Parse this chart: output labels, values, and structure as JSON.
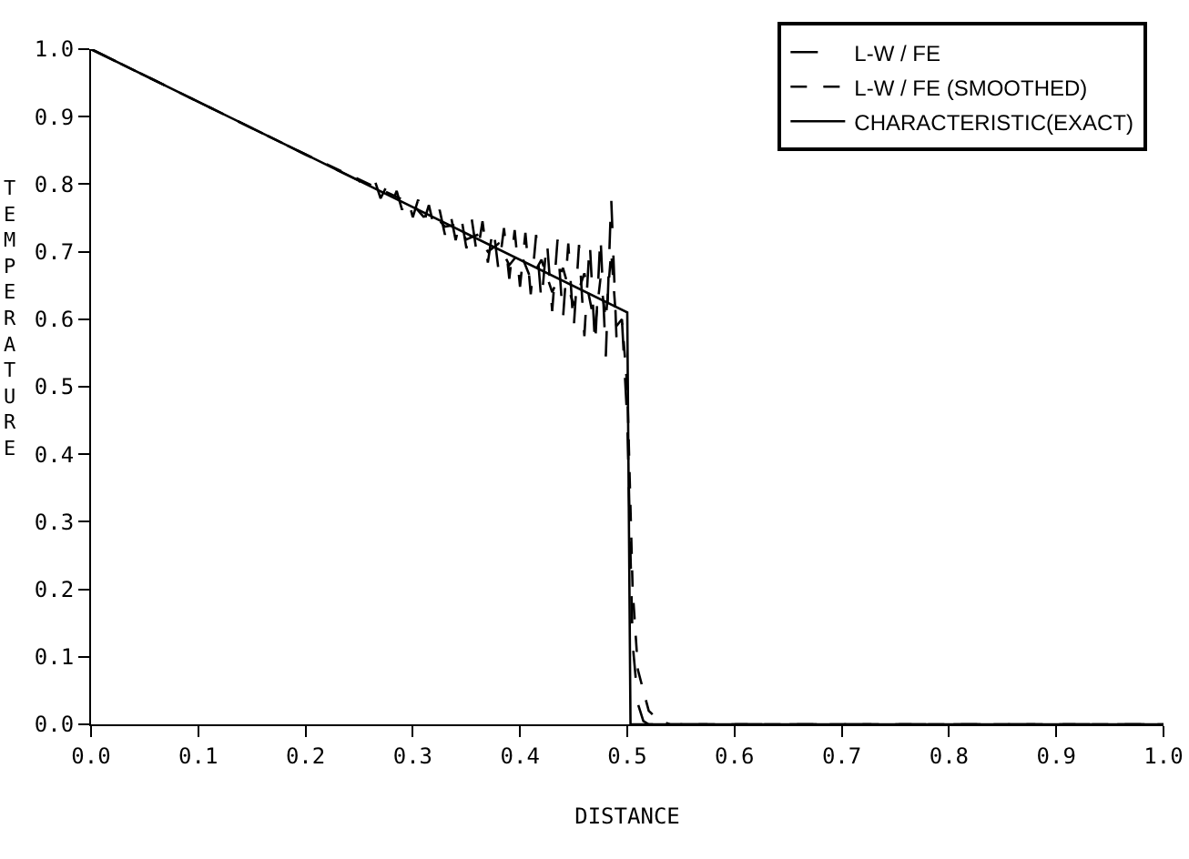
{
  "chart_data": {
    "type": "line",
    "xlabel": "DISTANCE",
    "ylabel": "TEMPERATURE",
    "xlim": [
      0,
      1
    ],
    "ylim": [
      0,
      1
    ],
    "xticks": [
      {
        "value": 0,
        "label": "0.0"
      },
      {
        "value": 0.1,
        "label": "0.1"
      },
      {
        "value": 0.2,
        "label": "0.2"
      },
      {
        "value": 0.3,
        "label": "0.3"
      },
      {
        "value": 0.4,
        "label": "0.4"
      },
      {
        "value": 0.5,
        "label": "0.5"
      },
      {
        "value": 0.6,
        "label": "0.6"
      },
      {
        "value": 0.7,
        "label": "0.7"
      },
      {
        "value": 0.8,
        "label": "0.8"
      },
      {
        "value": 0.9,
        "label": "0.9"
      },
      {
        "value": 1,
        "label": "1.0"
      }
    ],
    "yticks": [
      {
        "value": 0,
        "label": "0.0"
      },
      {
        "value": 0.1,
        "label": "0.1"
      },
      {
        "value": 0.2,
        "label": "0.2"
      },
      {
        "value": 0.3,
        "label": "0.3"
      },
      {
        "value": 0.4,
        "label": "0.4"
      },
      {
        "value": 0.5,
        "label": "0.5"
      },
      {
        "value": 0.6,
        "label": "0.6"
      },
      {
        "value": 0.7,
        "label": "0.7"
      },
      {
        "value": 0.8,
        "label": "0.8"
      },
      {
        "value": 0.9,
        "label": "0.9"
      },
      {
        "value": 1,
        "label": "1.0"
      }
    ],
    "grid": false,
    "legend": "top right",
    "marker": "none",
    "series": [
      {
        "name": "L-W / FE",
        "color": "#000000",
        "line_style": "dashed",
        "x": [
          0,
          0.05,
          0.1,
          0.15,
          0.2,
          0.25,
          0.26,
          0.265,
          0.27,
          0.275,
          0.28,
          0.285,
          0.29,
          0.295,
          0.3,
          0.305,
          0.31,
          0.315,
          0.32,
          0.325,
          0.33,
          0.335,
          0.34,
          0.345,
          0.35,
          0.355,
          0.36,
          0.365,
          0.37,
          0.375,
          0.38,
          0.385,
          0.39,
          0.395,
          0.4,
          0.405,
          0.41,
          0.415,
          0.42,
          0.425,
          0.43,
          0.435,
          0.44,
          0.445,
          0.45,
          0.455,
          0.46,
          0.465,
          0.47,
          0.475,
          0.48,
          0.485,
          0.49,
          0.495,
          0.5,
          0.505,
          0.51,
          0.515,
          0.52,
          1
        ],
        "values": [
          1,
          0.961,
          0.922,
          0.883,
          0.844,
          0.805,
          0.787,
          0.803,
          0.779,
          0.795,
          0.77,
          0.79,
          0.762,
          0.782,
          0.751,
          0.777,
          0.743,
          0.769,
          0.735,
          0.762,
          0.725,
          0.757,
          0.717,
          0.753,
          0.705,
          0.748,
          0.694,
          0.745,
          0.684,
          0.738,
          0.672,
          0.735,
          0.66,
          0.732,
          0.648,
          0.728,
          0.637,
          0.725,
          0.625,
          0.718,
          0.612,
          0.718,
          0.6,
          0.712,
          0.585,
          0.71,
          0.575,
          0.715,
          0.56,
          0.725,
          0.545,
          0.78,
          0.57,
          0.6,
          0.45,
          0.12,
          0.03,
          0.005,
          0,
          0
        ]
      },
      {
        "name": "L-W / FE (SMOOTHED)",
        "color": "#000000",
        "line_style": "dashed",
        "x": [
          0,
          0.1,
          0.2,
          0.3,
          0.31,
          0.32,
          0.33,
          0.34,
          0.35,
          0.36,
          0.37,
          0.38,
          0.39,
          0.4,
          0.41,
          0.42,
          0.43,
          0.44,
          0.45,
          0.46,
          0.47,
          0.475,
          0.48,
          0.485,
          0.49,
          0.495,
          0.5,
          0.505,
          0.51,
          0.52,
          0.53,
          0.54,
          1
        ],
        "values": [
          1,
          0.922,
          0.844,
          0.77,
          0.752,
          0.754,
          0.737,
          0.74,
          0.718,
          0.725,
          0.7,
          0.712,
          0.68,
          0.7,
          0.66,
          0.688,
          0.64,
          0.676,
          0.62,
          0.668,
          0.59,
          0.66,
          0.6,
          0.7,
          0.59,
          0.6,
          0.5,
          0.2,
          0.08,
          0.02,
          0.005,
          0,
          0
        ]
      },
      {
        "name": "CHARACTERISTIC(EXACT)",
        "color": "#000000",
        "line_style": "solid",
        "x": [
          0,
          0.5,
          0.503,
          1
        ],
        "values": [
          1,
          0.61,
          0,
          0
        ]
      }
    ]
  }
}
